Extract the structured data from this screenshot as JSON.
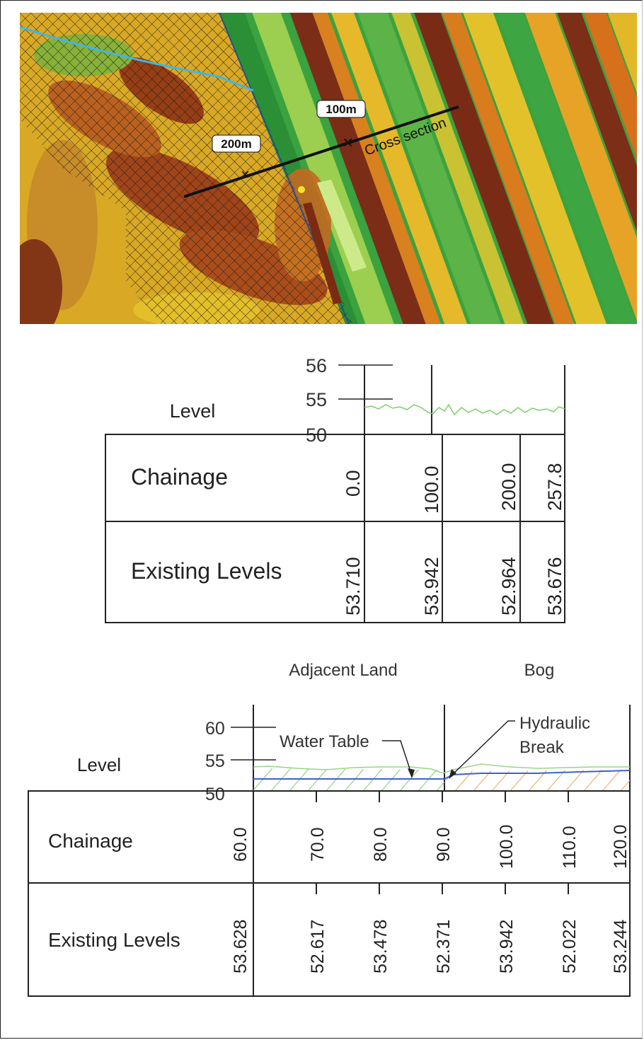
{
  "map": {
    "label_200": "200m",
    "label_100": "100m",
    "label_section": "Cross section",
    "colors": {
      "green": "#2e9a3a",
      "yellow": "#e0c21c",
      "orange": "#d8751c",
      "brown": "#7a2a14"
    }
  },
  "profile1": {
    "level_label": "Level",
    "chainage_label": "Chainage",
    "existing_label": "Existing Levels",
    "y_ticks": [
      "56",
      "55",
      "50"
    ],
    "chainages": [
      "0.0",
      "100.0",
      "200.0",
      "257.8"
    ],
    "levels": [
      "53.710",
      "53.942",
      "52.964",
      "53.676"
    ]
  },
  "profile2": {
    "zone_left": "Adjacent Land",
    "zone_right": "Bog",
    "water_table_label": "Water Table",
    "hydraulic_label_1": "Hydraulic",
    "hydraulic_label_2": "Break",
    "level_label": "Level",
    "chainage_label": "Chainage",
    "existing_label": "Existing Levels",
    "y_ticks": [
      "60",
      "55",
      "50"
    ],
    "chainages": [
      "60.0",
      "70.0",
      "80.0",
      "90.0",
      "100.0",
      "110.0",
      "120.0"
    ],
    "levels": [
      "53.628",
      "52.617",
      "53.478",
      "52.371",
      "53.942",
      "52.022",
      "53.244"
    ]
  }
}
